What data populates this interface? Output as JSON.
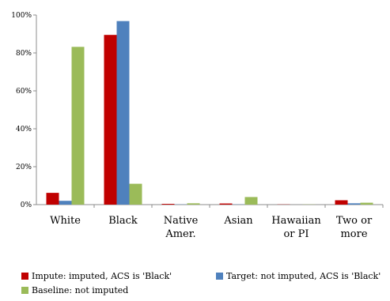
{
  "chart_data": {
    "type": "bar",
    "categories": [
      "White",
      "Black",
      "Native\nAmer.",
      "Asian",
      "Hawaiian\nor PI",
      "Two or\nmore"
    ],
    "series": [
      {
        "name": "Impute: imputed, ACS is 'Black'",
        "color": "#c00000",
        "values": [
          6.2,
          89.5,
          0.4,
          0.6,
          0.1,
          2.3
        ]
      },
      {
        "name": "Target: not imputed, ACS is 'Black'",
        "color": "#4f81bd",
        "values": [
          2.0,
          96.8,
          0.1,
          0.1,
          0.0,
          0.7
        ]
      },
      {
        "name": "Baseline: not imputed",
        "color": "#9bbb59",
        "values": [
          83.2,
          11.0,
          0.7,
          4.0,
          0.1,
          1.0
        ]
      }
    ],
    "ylim": [
      0,
      100
    ],
    "yticks": [
      "0%",
      "20%",
      "40%",
      "60%",
      "80%",
      "100%"
    ],
    "ytick_values": [
      0,
      20,
      40,
      60,
      80,
      100
    ],
    "grid": false,
    "legend_position": "bottom"
  }
}
